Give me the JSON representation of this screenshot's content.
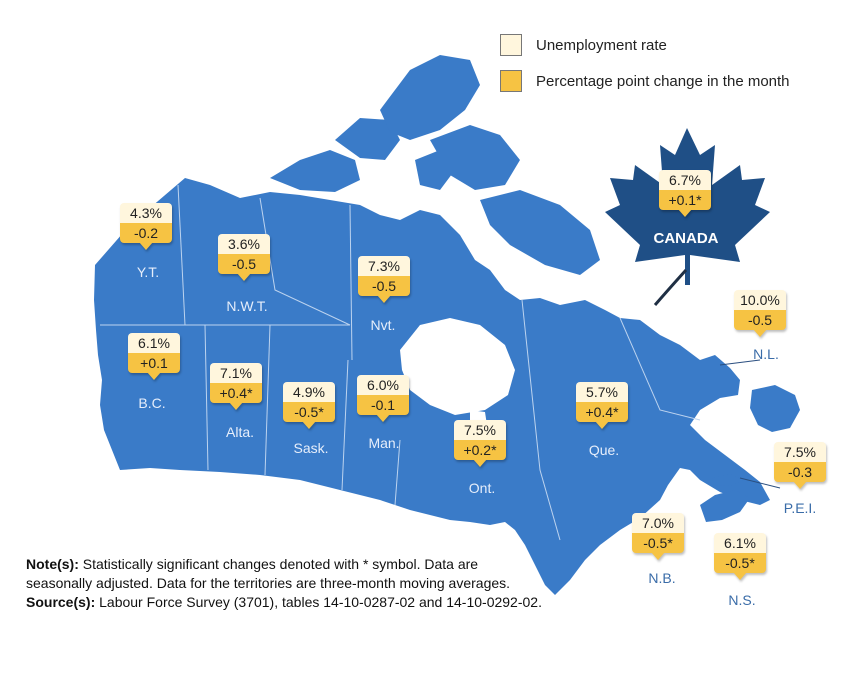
{
  "legend": {
    "rate_label": "Unemployment rate",
    "change_label": "Percentage point change in the month",
    "rate_color": "#fff6dd",
    "change_color": "#f6c343"
  },
  "map_color": "#3a7bc8",
  "regions": [
    {
      "id": "yt",
      "name": "Y.T.",
      "rate": "4.3%",
      "change": "-0.2"
    },
    {
      "id": "nwt",
      "name": "N.W.T.",
      "rate": "3.6%",
      "change": "-0.5"
    },
    {
      "id": "nvt",
      "name": "Nvt.",
      "rate": "7.3%",
      "change": "-0.5"
    },
    {
      "id": "bc",
      "name": "B.C.",
      "rate": "6.1%",
      "change": "+0.1"
    },
    {
      "id": "alta",
      "name": "Alta.",
      "rate": "7.1%",
      "change": "+0.4*"
    },
    {
      "id": "sask",
      "name": "Sask.",
      "rate": "4.9%",
      "change": "-0.5*"
    },
    {
      "id": "man",
      "name": "Man.",
      "rate": "6.0%",
      "change": "-0.1"
    },
    {
      "id": "ont",
      "name": "Ont.",
      "rate": "7.5%",
      "change": "+0.2*"
    },
    {
      "id": "que",
      "name": "Que.",
      "rate": "5.7%",
      "change": "+0.4*"
    },
    {
      "id": "nl",
      "name": "N.L.",
      "rate": "10.0%",
      "change": "-0.5"
    },
    {
      "id": "pei",
      "name": "P.E.I.",
      "rate": "7.5%",
      "change": "-0.3"
    },
    {
      "id": "nb",
      "name": "N.B.",
      "rate": "7.0%",
      "change": "-0.5*"
    },
    {
      "id": "ns",
      "name": "N.S.",
      "rate": "6.1%",
      "change": "-0.5*"
    }
  ],
  "canada": {
    "name": "CANADA",
    "rate": "6.7%",
    "change": "+0.1*",
    "leaf_color": "#1f4f86"
  },
  "notes": {
    "note_label": "Note(s):",
    "note_text": "Statistically significant changes denoted with * symbol. Data are seasonally adjusted. Data for the territories are three-month moving averages.",
    "source_label": "Source(s):",
    "source_text": "Labour Force Survey (3701), tables 14-10-0287-02 and 14-10-0292-02."
  }
}
